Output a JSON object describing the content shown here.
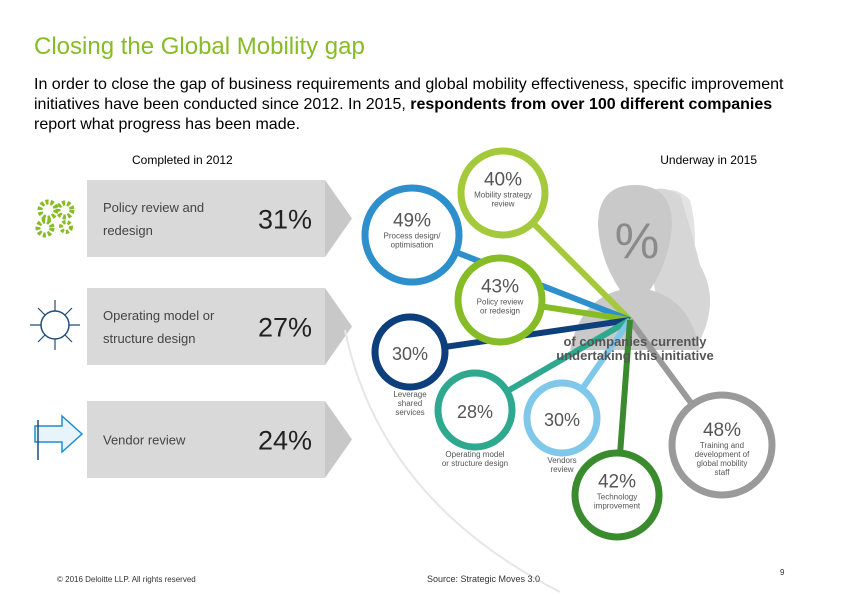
{
  "title": "Closing the Global Mobility gap",
  "intro": [
    "In order to close the gap of business requirements and global mobility effectiveness, specific improvement initiatives have been conducted since 2012. In 2015, ",
    "respondents from over 100 different companies",
    " report what progress has been made."
  ],
  "completed": {
    "heading": "Completed in 2012",
    "rows": [
      {
        "label": [
          "Policy review and",
          "redesign"
        ],
        "value": "31%"
      },
      {
        "label": [
          "Operating model or",
          "structure design"
        ],
        "value": "27%"
      },
      {
        "label": [
          "Vendor review"
        ],
        "value": "24%"
      }
    ]
  },
  "underway": {
    "heading": "Underway in 2015",
    "center": {
      "symbol": "%",
      "caption": [
        "of companies currently",
        "undertaking this initiative"
      ]
    },
    "circles": [
      {
        "value": "40%",
        "label": [
          "Mobility strategy",
          "review"
        ]
      },
      {
        "value": "49%",
        "label": [
          "Process design/",
          "optimisation"
        ]
      },
      {
        "value": "43%",
        "label": [
          "Policy review",
          "or redesign"
        ]
      },
      {
        "value": "30%",
        "label": [
          "Leverage",
          "shared",
          "services"
        ]
      },
      {
        "value": "28%",
        "label": [
          "Operating model",
          "or structure design"
        ]
      },
      {
        "value": "30%",
        "label": [
          "Vendors",
          "review"
        ]
      },
      {
        "value": "48%",
        "label": [
          "Training and",
          "development of",
          "global mobility",
          "staff"
        ]
      },
      {
        "value": "42%",
        "label": [
          "Technology",
          "improvement"
        ]
      }
    ]
  },
  "footer": {
    "copyright": "© 2016 Deloitte LLP. All rights reserved",
    "source": "Source: Strategic Moves 3.0",
    "page": "9"
  }
}
